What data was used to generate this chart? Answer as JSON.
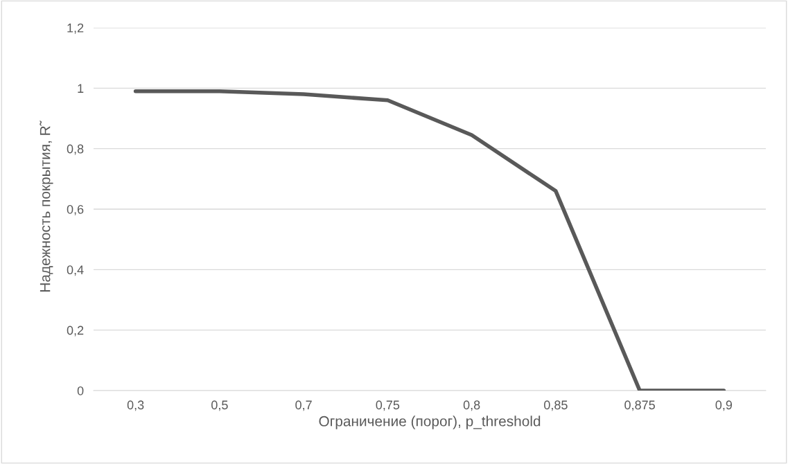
{
  "chart_data": {
    "type": "line",
    "xlabel": "Ограничение (порог), p_threshold",
    "ylabel": "Надежность покрытия, R̃",
    "categories": [
      "0,3",
      "0,5",
      "0,7",
      "0,75",
      "0,8",
      "0,85",
      "0,875",
      "0,9"
    ],
    "series": [
      {
        "color": "#595959",
        "values": [
          0.99,
          0.99,
          0.98,
          0.96,
          0.845,
          0.66,
          0,
          0
        ]
      }
    ],
    "ylim": [
      0,
      1.2
    ],
    "yticks": [
      {
        "value": 0,
        "label": "0"
      },
      {
        "value": 0.2,
        "label": "0,2"
      },
      {
        "value": 0.4,
        "label": "0,4"
      },
      {
        "value": 0.6,
        "label": "0,6"
      },
      {
        "value": 0.8,
        "label": "0,8"
      },
      {
        "value": 1,
        "label": "1"
      },
      {
        "value": 1.2,
        "label": "1,2"
      }
    ],
    "grid": "y",
    "marker": "none",
    "line_style": "solid"
  }
}
